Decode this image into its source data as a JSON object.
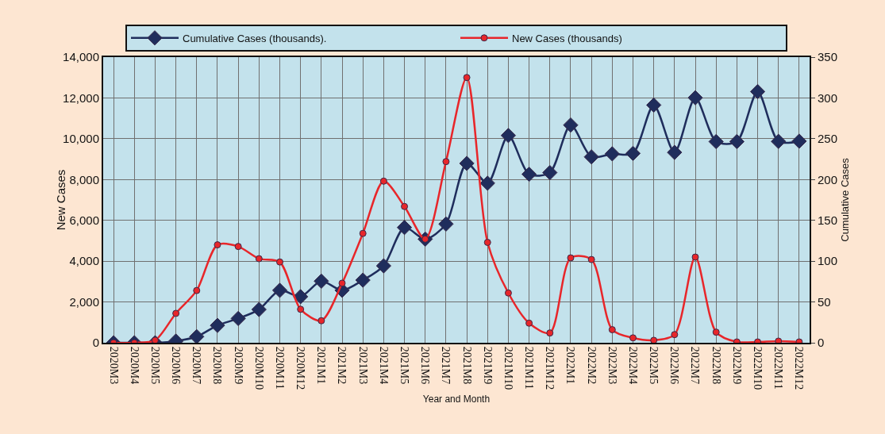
{
  "chart_data": {
    "type": "line",
    "xlabel": "Year and Month",
    "ylabel": "New Cases",
    "y2label": "Cumulative Cases",
    "categories": [
      "2020M3",
      "2020M4",
      "2020M5",
      "2020M6",
      "2020M7",
      "2020M8",
      "2020M9",
      "2020M10",
      "2020M11",
      "2020M12",
      "2021M1",
      "2021M2",
      "2021M3",
      "2021M4",
      "2021M5",
      "2021M6",
      "2021M7",
      "2021M8",
      "2021M9",
      "2021M10",
      "2021M11",
      "2021M12",
      "2022M1",
      "2022M2",
      "2022M3",
      "2022M4",
      "2022M5",
      "2022M6",
      "2022M7",
      "2022M8",
      "2022M9",
      "2022M10",
      "2022M11",
      "2022M12"
    ],
    "series": [
      {
        "name": "Cumulative Cases (thousands).",
        "color": "#1f2d5c",
        "marker": "diamond",
        "values": [
          0,
          0,
          0,
          80,
          300,
          850,
          1190,
          1630,
          2570,
          2260,
          3020,
          2570,
          3070,
          3770,
          5650,
          5080,
          5820,
          8790,
          7820,
          10160,
          8260,
          8340,
          10670,
          9110,
          9260,
          9280,
          11650,
          9330,
          12010,
          9860,
          9860,
          12310,
          9870,
          9880
        ]
      },
      {
        "name": "New Cases (thousands)",
        "color": "#e8262a",
        "marker": "circle",
        "axis": "y2",
        "values": [
          0,
          0,
          3,
          36,
          64,
          120,
          118,
          103,
          99,
          41,
          27,
          73,
          134,
          198,
          167,
          127,
          222,
          325,
          123,
          61,
          24,
          12,
          104,
          102,
          16,
          6,
          3,
          10,
          105,
          13,
          1,
          1,
          2,
          1
        ]
      }
    ],
    "ylim": [
      0,
      14000
    ],
    "yticks": [
      0,
      {
        "value": 2000,
        "label": "2,000"
      },
      {
        "value": 4000,
        "label": "4,000"
      },
      {
        "value": 6000,
        "label": "6,000"
      },
      {
        "value": 8000,
        "label": "8,000"
      },
      {
        "value": 10000,
        "label": "10,000"
      },
      {
        "value": 12000,
        "label": "12,000"
      },
      {
        "value": 14000,
        "label": "14,000"
      }
    ],
    "y2lim": [
      0,
      350
    ],
    "y2ticks": [
      0,
      50,
      100,
      150,
      200,
      250,
      300,
      350
    ],
    "grid": true,
    "legend": "top",
    "line_style": "solid"
  }
}
